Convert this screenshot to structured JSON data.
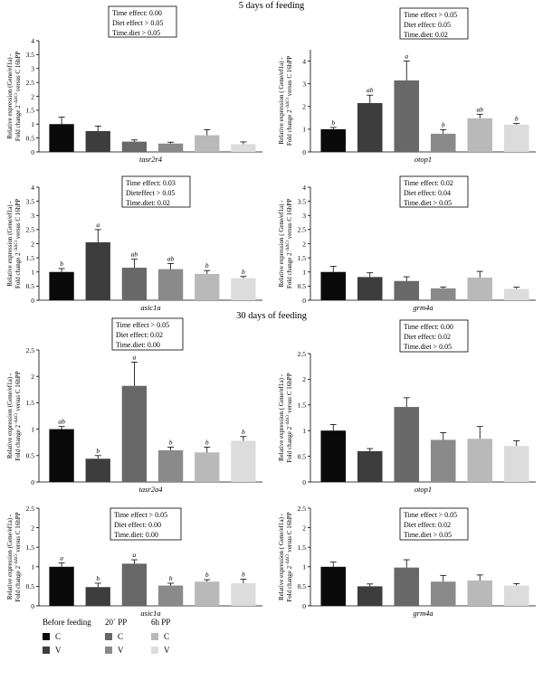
{
  "sections": [
    {
      "title": "5 days of feeding"
    },
    {
      "title": "30 days of feeding"
    }
  ],
  "colors": {
    "bars": [
      "#0a0a0a",
      "#3d3d3d",
      "#686868",
      "#8a8a8a",
      "#b9b9b9",
      "#dcdcdc"
    ],
    "axis": "#000000",
    "errorbar": "#000000"
  },
  "chart_data": [
    {
      "type": "bar",
      "section": 0,
      "xlabel": "tasr2r4",
      "ylabel_line1": "Relative expression (Gene/ef1a) -",
      "ylabel_line2_pre": "Fold change 2",
      "ylabel_sup": "−ΔΔCt",
      "ylabel_line2_post": "versus C 16hPP",
      "ylim": [
        0,
        4
      ],
      "yticks": [
        "0",
        "0.5",
        "1",
        "1.5",
        "2",
        "2.5",
        "3",
        "3.5",
        "4"
      ],
      "values": [
        1.0,
        0.75,
        0.37,
        0.3,
        0.6,
        0.28
      ],
      "errors": [
        0.25,
        0.18,
        0.06,
        0.05,
        0.2,
        0.08
      ],
      "letters": [
        "",
        "",
        "",
        "",
        "",
        ""
      ],
      "stats": [
        "Time effect: 0.00",
        "Diet effect > 0.05",
        "Time.diet > 0.05"
      ]
    },
    {
      "type": "bar",
      "section": 0,
      "xlabel": "otop1",
      "ylabel_line1": "Relative expression ( Gene/ef1a) -",
      "ylabel_line2_pre": "Fold change 2",
      "ylabel_sup": "−ΔΔCt",
      "ylabel_line2_post": "versus C 16hPP",
      "ylim": [
        0,
        4.5
      ],
      "yticks": [
        "0",
        "1",
        "2",
        "3",
        "4"
      ],
      "values": [
        1.0,
        2.15,
        3.15,
        0.8,
        1.48,
        1.2
      ],
      "errors": [
        0.08,
        0.35,
        0.85,
        0.18,
        0.18,
        0.05
      ],
      "letters": [
        "b",
        "ab",
        "a",
        "b",
        "ab",
        "b"
      ],
      "stats": [
        "Time effect > 0.05",
        "Diet effect: 0.05",
        "Time.diet: 0.02"
      ]
    },
    {
      "type": "bar",
      "section": 0,
      "xlabel": "asic1a",
      "ylabel_line1": "Relative expression (Gene/ef1a) -",
      "ylabel_line2_pre": "Fold change 2",
      "ylabel_sup": "−ΔΔCt",
      "ylabel_line2_post": "versus C 16hPP",
      "ylim": [
        0,
        4
      ],
      "yticks": [
        "0",
        "0.5",
        "1",
        "1.5",
        "2",
        "2.5",
        "3",
        "3.5",
        "4"
      ],
      "values": [
        1.0,
        2.05,
        1.15,
        1.1,
        0.93,
        0.78
      ],
      "errors": [
        0.12,
        0.45,
        0.3,
        0.2,
        0.12,
        0.06
      ],
      "letters": [
        "b",
        "a",
        "ab",
        "ab",
        "b",
        "b"
      ],
      "stats": [
        "Time effect: 0.03",
        "Dieteffect > 0.05",
        "Time.diet: 0.02"
      ]
    },
    {
      "type": "bar",
      "section": 0,
      "xlabel": "grm4a",
      "ylabel_line1": "Relative expression ( Gene/ef1a) -",
      "ylabel_line2_pre": "Fold change 2",
      "ylabel_sup": "−ΔΔCt",
      "ylabel_line2_post": "versus C 16hPP",
      "ylim": [
        0,
        4
      ],
      "yticks": [
        "0",
        "0.5",
        "1",
        "1.5",
        "2",
        "2.5",
        "3",
        "3.5",
        "4"
      ],
      "values": [
        1.0,
        0.82,
        0.68,
        0.42,
        0.8,
        0.4
      ],
      "errors": [
        0.2,
        0.15,
        0.15,
        0.05,
        0.22,
        0.06
      ],
      "letters": [
        "",
        "",
        "",
        "",
        "",
        ""
      ],
      "stats": [
        "Time effect: 0.02",
        "Diet effect: 0.04",
        "Time.diet > 0.05"
      ]
    },
    {
      "type": "bar",
      "section": 1,
      "xlabel": "tasr2a4",
      "ylabel_line1": "Relative expression (Gene/ef1a) -",
      "ylabel_line2_pre": "Fold change 2",
      "ylabel_sup": "−ΔΔCt",
      "ylabel_line2_post": "versus C 16hPP",
      "ylim": [
        0,
        2.5
      ],
      "yticks": [
        "0",
        "0.5",
        "1",
        "1.5",
        "2",
        "2.5"
      ],
      "values": [
        1.0,
        0.44,
        1.82,
        0.6,
        0.56,
        0.78
      ],
      "errors": [
        0.05,
        0.06,
        0.45,
        0.06,
        0.1,
        0.08
      ],
      "letters": [
        "ab",
        "b",
        "a",
        "b",
        "b",
        "b"
      ],
      "stats": [
        "Time effect > 0.05",
        "Diet effect: 0.02",
        "Time.diet: 0.00"
      ]
    },
    {
      "type": "bar",
      "section": 1,
      "xlabel": "otop1",
      "ylabel_line1": "Relative expression ( Gene/ef1a) -",
      "ylabel_line2_pre": "Fold change 2",
      "ylabel_sup": "−ΔΔCt",
      "ylabel_line2_post": "versus C 16hPP",
      "ylim": [
        0,
        2.5
      ],
      "yticks": [
        "0",
        "0.5",
        "1",
        "1.5",
        "2",
        "2.5"
      ],
      "values": [
        1.0,
        0.6,
        1.46,
        0.82,
        0.84,
        0.7
      ],
      "errors": [
        0.12,
        0.05,
        0.18,
        0.14,
        0.24,
        0.1
      ],
      "letters": [
        "",
        "",
        "",
        "",
        "",
        ""
      ],
      "stats": [
        "Time effect: 0.00",
        "Diet effect: 0.02",
        "Time.diet > 0.05"
      ]
    },
    {
      "type": "bar",
      "section": 1,
      "xlabel": "asic1a",
      "ylabel_line1": "Relative expression (Gene/ef1a) -",
      "ylabel_line2_pre": "Fold change 2",
      "ylabel_sup": "−ΔΔCt",
      "ylabel_line2_post": "versus C 16hPP",
      "ylim": [
        0,
        2.5
      ],
      "yticks": [
        "0",
        "0.5",
        "1",
        "1.5",
        "2",
        "2.5"
      ],
      "values": [
        1.0,
        0.48,
        1.08,
        0.52,
        0.62,
        0.58
      ],
      "errors": [
        0.1,
        0.1,
        0.1,
        0.06,
        0.05,
        0.1
      ],
      "letters": [
        "a",
        "b",
        "a",
        "b",
        "b",
        "b"
      ],
      "stats": [
        "Time effect > 0.05",
        "Diet effect: 0.00",
        "Time.diet: 0.00"
      ]
    },
    {
      "type": "bar",
      "section": 1,
      "xlabel": "grm4a",
      "ylabel_line1": "Relative expression ( Gene/ef1a) -",
      "ylabel_line2_pre": "Fold change 2",
      "ylabel_sup": "−ΔΔCt",
      "ylabel_line2_post": "versus C 16hPP",
      "ylim": [
        0,
        2.5
      ],
      "yticks": [
        "0",
        "0.5",
        "1",
        "1.5",
        "2",
        "2.5"
      ],
      "values": [
        1.0,
        0.5,
        0.98,
        0.62,
        0.65,
        0.52
      ],
      "errors": [
        0.12,
        0.06,
        0.2,
        0.16,
        0.14,
        0.05
      ],
      "letters": [
        "",
        "",
        "",
        "",
        "",
        ""
      ],
      "stats": [
        "Time effect > 0.05",
        "Diet effect: 0.02",
        "Time.diet > 0.05"
      ]
    }
  ],
  "legend": {
    "groups": [
      {
        "title": "Before feeding",
        "items": [
          "C",
          "V"
        ]
      },
      {
        "title": "20´ PP",
        "items": [
          "C",
          "V"
        ]
      },
      {
        "title": "6h PP",
        "items": [
          "C",
          "V"
        ]
      }
    ]
  }
}
